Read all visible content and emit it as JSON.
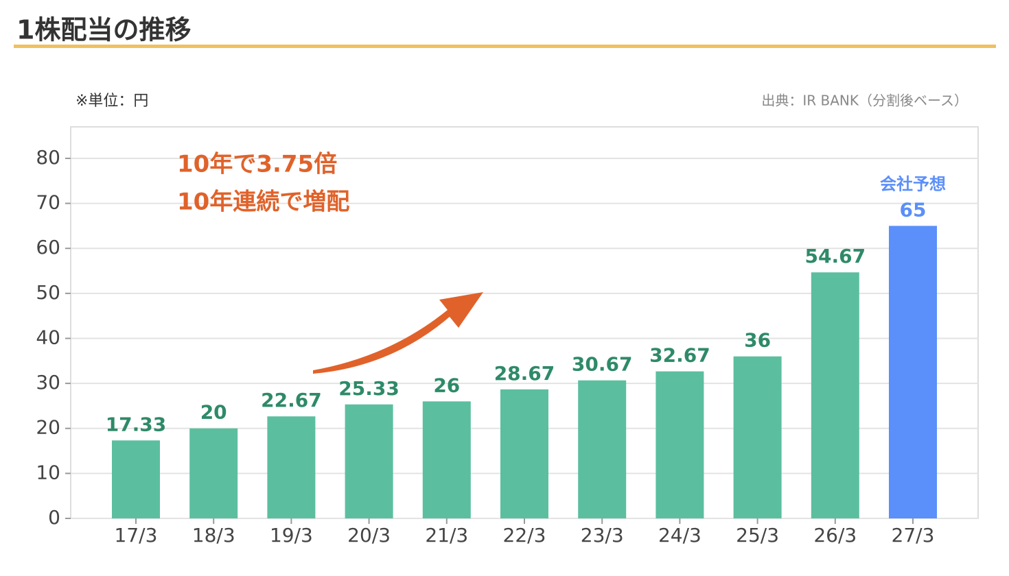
{
  "chart_data": {
    "type": "bar",
    "title": "1株配当の推移",
    "unit_note": "※単位：円",
    "source": "出典：IR BANK（分割後ベース）",
    "annotations": [
      "10年で3.75倍",
      "10年連続で増配"
    ],
    "forecast_label": "会社予想",
    "categories": [
      "17/3",
      "18/3",
      "19/3",
      "20/3",
      "21/3",
      "22/3",
      "23/3",
      "24/3",
      "25/3",
      "26/3",
      "27/3"
    ],
    "values": [
      17.33,
      20,
      22.67,
      25.33,
      26,
      28.67,
      30.67,
      32.67,
      36,
      54.67,
      65
    ],
    "colors": [
      "#5bbf9f",
      "#5bbf9f",
      "#5bbf9f",
      "#5bbf9f",
      "#5bbf9f",
      "#5bbf9f",
      "#5bbf9f",
      "#5bbf9f",
      "#5bbf9f",
      "#5bbf9f",
      "#5b8ff9"
    ],
    "label_colors": [
      "#2e8a68",
      "#2e8a68",
      "#2e8a68",
      "#2e8a68",
      "#2e8a68",
      "#2e8a68",
      "#2e8a68",
      "#2e8a68",
      "#2e8a68",
      "#2e8a68",
      "#5b8ff9"
    ],
    "ylim": [
      0,
      87
    ],
    "yticks": [
      0,
      10,
      20,
      30,
      40,
      50,
      60,
      70,
      80
    ],
    "grid": true
  }
}
